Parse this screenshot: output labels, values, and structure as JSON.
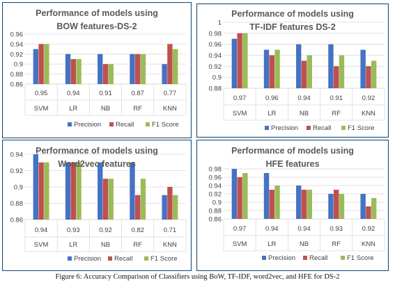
{
  "figure": {
    "caption": "Figure 6: Accuracy Comparison of Classifiers using BoW, TF-IDF, word2vec, and HFE for DS-2"
  },
  "colors": {
    "precision": "#4472C4",
    "recall": "#C0504D",
    "f1": "#9BBB59",
    "border": "#1F4E79",
    "gridline": "#D9D9D9"
  },
  "chart_data": [
    {
      "type": "bar",
      "title": [
        "Performance of models using",
        "BOW features-DS-2"
      ],
      "categories": [
        "SVM",
        "LR",
        "NB",
        "RF",
        "KNN"
      ],
      "row_values": [
        "0.95",
        "0.94",
        "0.91",
        "0.87",
        "0.77"
      ],
      "ylim": [
        0.86,
        0.96
      ],
      "yticks": [
        "0.86",
        "0.88",
        "0.9",
        "0.92",
        "0.94",
        "0.96"
      ],
      "series": [
        {
          "name": "Precision",
          "values": [
            0.93,
            0.92,
            0.92,
            0.92,
            0.9
          ]
        },
        {
          "name": "Recall",
          "values": [
            0.94,
            0.91,
            0.9,
            0.92,
            0.94
          ]
        },
        {
          "name": "F1 Score",
          "values": [
            0.94,
            0.91,
            0.9,
            0.92,
            0.93
          ]
        }
      ],
      "grid": true,
      "legend": "bottom"
    },
    {
      "type": "bar",
      "title": [
        "Performance of models using",
        "TF-IDF features DS-2"
      ],
      "categories": [
        "SVM",
        "LR",
        "NB",
        "RF",
        "KNN"
      ],
      "row_values": [
        "0.97",
        "0.96",
        "0.94",
        "0.91",
        "0.92"
      ],
      "ylim": [
        0.88,
        1.0
      ],
      "yticks": [
        "0.88",
        "0.9",
        "0.92",
        "0.94",
        "0.96",
        "0.98",
        "1"
      ],
      "series": [
        {
          "name": "Precision",
          "values": [
            0.97,
            0.95,
            0.96,
            0.96,
            0.95
          ]
        },
        {
          "name": "Recall",
          "values": [
            0.98,
            0.94,
            0.93,
            0.92,
            0.92
          ]
        },
        {
          "name": "F1 Score",
          "values": [
            0.98,
            0.95,
            0.94,
            0.94,
            0.93
          ]
        }
      ],
      "grid": true,
      "legend": "bottom"
    },
    {
      "type": "bar",
      "title": [
        "Performance of models using",
        "Word2vec features"
      ],
      "categories": [
        "SVM",
        "LR",
        "NB",
        "RF",
        "KNN"
      ],
      "row_values": [
        "0.94",
        "0.93",
        "0.92",
        "0.82",
        "0.71"
      ],
      "ylim": [
        0.86,
        0.94
      ],
      "yticks": [
        "0.86",
        "0.88",
        "0.9",
        "0.92",
        "0.94"
      ],
      "series": [
        {
          "name": "Precision",
          "values": [
            0.94,
            0.93,
            0.93,
            0.93,
            0.89
          ]
        },
        {
          "name": "Recall",
          "values": [
            0.93,
            0.93,
            0.91,
            0.89,
            0.9
          ]
        },
        {
          "name": "F1 Score",
          "values": [
            0.93,
            0.93,
            0.91,
            0.91,
            0.89
          ]
        }
      ],
      "grid": true,
      "legend": "bottom"
    },
    {
      "type": "bar",
      "title": [
        "Performance of models using",
        "HFE features"
      ],
      "categories": [
        "SVM",
        "LR",
        "NB",
        "RF",
        "KNN"
      ],
      "row_values": [
        "0.97",
        "0.94",
        "0.94",
        "0.93",
        "0.92"
      ],
      "ylim": [
        0.86,
        0.98
      ],
      "yticks": [
        "0.86",
        "0.88",
        "0.9",
        "0.92",
        "0.94",
        "0.96",
        "0.98"
      ],
      "series": [
        {
          "name": "Precision",
          "values": [
            0.98,
            0.97,
            0.94,
            0.92,
            0.92
          ]
        },
        {
          "name": "Recall",
          "values": [
            0.96,
            0.93,
            0.93,
            0.93,
            0.89
          ]
        },
        {
          "name": "F1 Score",
          "values": [
            0.97,
            0.94,
            0.93,
            0.92,
            0.91
          ]
        }
      ],
      "grid": true,
      "legend": "bottom"
    }
  ]
}
